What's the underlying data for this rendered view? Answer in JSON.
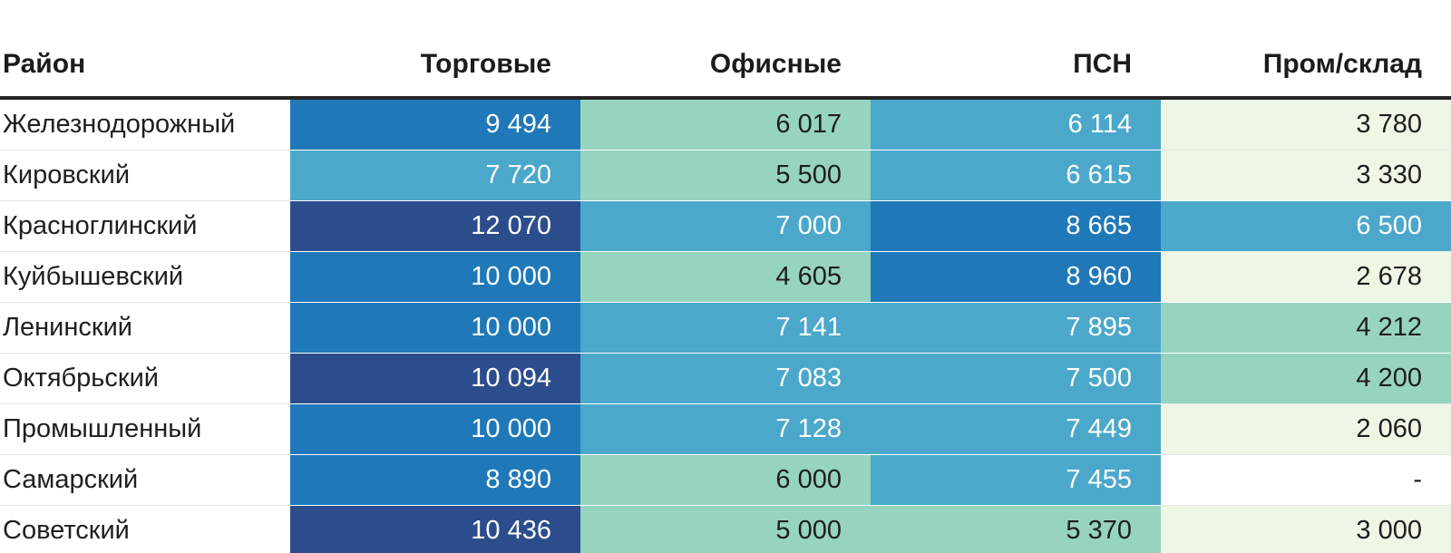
{
  "colors": {
    "navy": "#2C4D8C",
    "blue": "#1F78B8",
    "teal": "#4BA8CB",
    "green": "#97D4BF",
    "pale": "#EEF7E6",
    "none": "#FFFFFF",
    "text_dark": "#1E1E1E",
    "text_light": "#FFFFFF",
    "header_rule": "#262626"
  },
  "dark_tones": [
    "navy",
    "blue",
    "teal"
  ],
  "table": {
    "header": {
      "district": "Район",
      "cols": [
        "Торговые",
        "Офисные",
        "ПСН",
        "Пром/склад"
      ]
    },
    "rows": [
      {
        "label": "Железнодорожный",
        "cells": [
          {
            "text": "9 494",
            "tone": "blue"
          },
          {
            "text": "6 017",
            "tone": "green"
          },
          {
            "text": "6 114",
            "tone": "teal"
          },
          {
            "text": "3 780",
            "tone": "pale"
          }
        ]
      },
      {
        "label": "Кировский",
        "cells": [
          {
            "text": "7 720",
            "tone": "teal"
          },
          {
            "text": "5 500",
            "tone": "green"
          },
          {
            "text": "6 615",
            "tone": "teal"
          },
          {
            "text": "3 330",
            "tone": "pale"
          }
        ]
      },
      {
        "label": "Красноглинский",
        "cells": [
          {
            "text": "12 070",
            "tone": "navy"
          },
          {
            "text": "7 000",
            "tone": "teal"
          },
          {
            "text": "8 665",
            "tone": "blue"
          },
          {
            "text": "6 500",
            "tone": "teal"
          }
        ]
      },
      {
        "label": "Куйбышевский",
        "cells": [
          {
            "text": "10 000",
            "tone": "blue"
          },
          {
            "text": "4 605",
            "tone": "green"
          },
          {
            "text": "8 960",
            "tone": "blue"
          },
          {
            "text": "2 678",
            "tone": "pale"
          }
        ]
      },
      {
        "label": "Ленинский",
        "cells": [
          {
            "text": "10 000",
            "tone": "blue"
          },
          {
            "text": "7 141",
            "tone": "teal"
          },
          {
            "text": "7 895",
            "tone": "teal"
          },
          {
            "text": "4 212",
            "tone": "green"
          }
        ]
      },
      {
        "label": "Октябрьский",
        "cells": [
          {
            "text": "10 094",
            "tone": "navy"
          },
          {
            "text": "7 083",
            "tone": "teal"
          },
          {
            "text": "7 500",
            "tone": "teal"
          },
          {
            "text": "4 200",
            "tone": "green"
          }
        ]
      },
      {
        "label": "Промышленный",
        "cells": [
          {
            "text": "10 000",
            "tone": "blue"
          },
          {
            "text": "7 128",
            "tone": "teal"
          },
          {
            "text": "7 449",
            "tone": "teal"
          },
          {
            "text": "2 060",
            "tone": "pale"
          }
        ]
      },
      {
        "label": "Самарский",
        "cells": [
          {
            "text": "8 890",
            "tone": "blue"
          },
          {
            "text": "6 000",
            "tone": "green"
          },
          {
            "text": "7 455",
            "tone": "teal"
          },
          {
            "text": "-",
            "tone": "none"
          }
        ]
      },
      {
        "label": "Советский",
        "cells": [
          {
            "text": "10 436",
            "tone": "navy"
          },
          {
            "text": "5 000",
            "tone": "green"
          },
          {
            "text": "5 370",
            "tone": "green"
          },
          {
            "text": "3 000",
            "tone": "pale"
          }
        ]
      }
    ]
  },
  "chart_data": {
    "type": "heatmap",
    "title": "",
    "columns": [
      "Торговые",
      "Офисные",
      "ПСН",
      "Пром/склад"
    ],
    "row_label_header": "Район",
    "rows": [
      "Железнодорожный",
      "Кировский",
      "Красноглинский",
      "Куйбышевский",
      "Ленинский",
      "Октябрьский",
      "Промышленный",
      "Самарский",
      "Советский"
    ],
    "values": [
      [
        9494,
        6017,
        6114,
        3780
      ],
      [
        7720,
        5500,
        6615,
        3330
      ],
      [
        12070,
        7000,
        8665,
        6500
      ],
      [
        10000,
        4605,
        8960,
        2678
      ],
      [
        10000,
        7141,
        7895,
        4212
      ],
      [
        10094,
        7083,
        7500,
        4200
      ],
      [
        10000,
        7128,
        7449,
        2060
      ],
      [
        8890,
        6000,
        7455,
        null
      ],
      [
        10436,
        5000,
        5370,
        3000
      ]
    ],
    "value_range": [
      2060,
      12070
    ],
    "color_scale": {
      "direction": "low-to-high",
      "stops": [
        "#EEF7E6",
        "#97D4BF",
        "#4BA8CB",
        "#1F78B8",
        "#2C4D8C"
      ]
    },
    "missing_value_text": "-",
    "legend": "none",
    "grid": "off"
  }
}
